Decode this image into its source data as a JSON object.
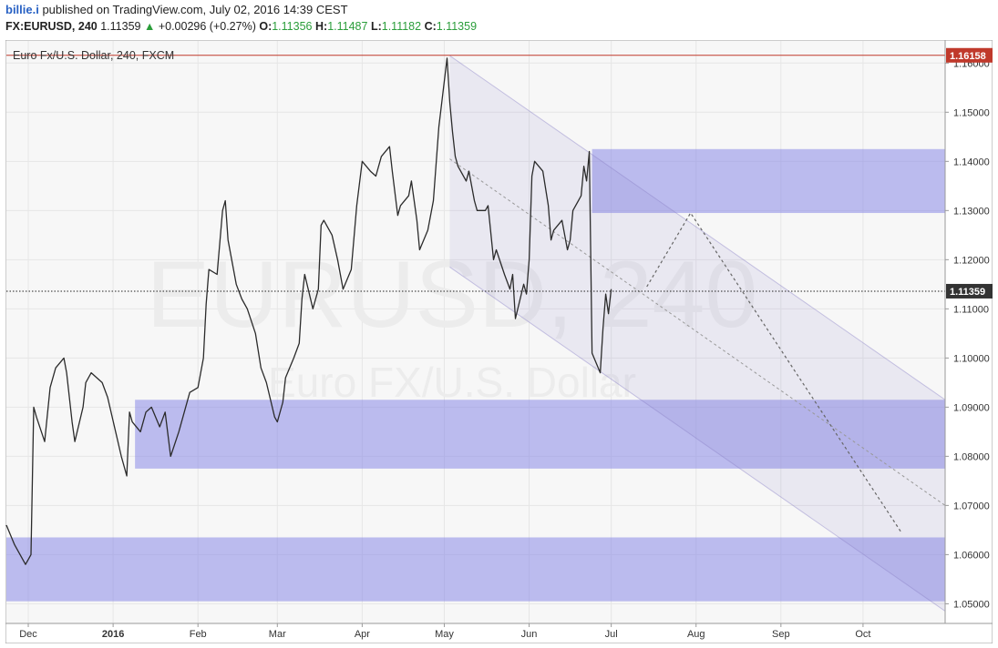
{
  "header": {
    "author": "billie.i",
    "published_text": " published on TradingView.com, July 02, 2016 14:39 CEST",
    "symbol": "FX:EURUSD, 240",
    "last": "1.11359",
    "change_arrow": "▲",
    "change": "+0.00296 (+0.27%)",
    "o_label": "O:",
    "o_value": "1.11356",
    "h_label": "H:",
    "h_value": "1.11487",
    "l_label": "L:",
    "l_value": "1.11182",
    "c_label": "C:",
    "c_value": "1.11359"
  },
  "chart_data": {
    "type": "line",
    "title": "Euro Fx/U.S. Dollar, 240, FXCM",
    "watermark_symbol": "EURUSD, 240",
    "watermark_name": "Euro FX/U.S. Dollar",
    "ylim": [
      1.046,
      1.1645
    ],
    "xlim": [
      "2015-11-23",
      "2016-10-31"
    ],
    "y_ticks": [
      "1.16000",
      "1.15000",
      "1.14000",
      "1.13000",
      "1.12000",
      "1.11000",
      "1.10000",
      "1.09000",
      "1.08000",
      "1.07000",
      "1.06000",
      "1.05000"
    ],
    "x_ticks": [
      {
        "label": "Dec",
        "date": "2015-12-01",
        "bold": false
      },
      {
        "label": "2016",
        "date": "2016-01-01",
        "bold": true
      },
      {
        "label": "Feb",
        "date": "2016-02-01",
        "bold": false
      },
      {
        "label": "Mar",
        "date": "2016-03-01",
        "bold": false
      },
      {
        "label": "Apr",
        "date": "2016-04-01",
        "bold": false
      },
      {
        "label": "May",
        "date": "2016-05-01",
        "bold": false
      },
      {
        "label": "Jun",
        "date": "2016-06-01",
        "bold": false
      },
      {
        "label": "Jul",
        "date": "2016-07-01",
        "bold": false
      },
      {
        "label": "Aug",
        "date": "2016-08-01",
        "bold": false
      },
      {
        "label": "Sep",
        "date": "2016-09-01",
        "bold": false
      },
      {
        "label": "Oct",
        "date": "2016-10-01",
        "bold": false
      }
    ],
    "price_series": {
      "x": [
        "2015-11-23",
        "2015-11-26",
        "2015-11-30",
        "2015-12-02",
        "2015-12-03",
        "2015-12-04",
        "2015-12-07",
        "2015-12-09",
        "2015-12-11",
        "2015-12-14",
        "2015-12-15",
        "2015-12-17",
        "2015-12-18",
        "2015-12-21",
        "2015-12-22",
        "2015-12-24",
        "2015-12-28",
        "2015-12-30",
        "2016-01-04",
        "2016-01-06",
        "2016-01-07",
        "2016-01-08",
        "2016-01-11",
        "2016-01-13",
        "2016-01-15",
        "2016-01-18",
        "2016-01-20",
        "2016-01-22",
        "2016-01-25",
        "2016-01-27",
        "2016-01-29",
        "2016-02-01",
        "2016-02-03",
        "2016-02-04",
        "2016-02-05",
        "2016-02-08",
        "2016-02-10",
        "2016-02-11",
        "2016-02-12",
        "2016-02-15",
        "2016-02-17",
        "2016-02-19",
        "2016-02-22",
        "2016-02-24",
        "2016-02-26",
        "2016-02-29",
        "2016-03-01",
        "2016-03-03",
        "2016-03-04",
        "2016-03-07",
        "2016-03-09",
        "2016-03-10",
        "2016-03-11",
        "2016-03-14",
        "2016-03-16",
        "2016-03-17",
        "2016-03-18",
        "2016-03-21",
        "2016-03-23",
        "2016-03-25",
        "2016-03-28",
        "2016-03-30",
        "2016-04-01",
        "2016-04-04",
        "2016-04-06",
        "2016-04-08",
        "2016-04-11",
        "2016-04-12",
        "2016-04-14",
        "2016-04-15",
        "2016-04-18",
        "2016-04-19",
        "2016-04-21",
        "2016-04-22",
        "2016-04-25",
        "2016-04-27",
        "2016-04-29",
        "2016-05-02",
        "2016-05-03",
        "2016-05-04",
        "2016-05-05",
        "2016-05-06",
        "2016-05-09",
        "2016-05-10",
        "2016-05-12",
        "2016-05-13",
        "2016-05-16",
        "2016-05-17",
        "2016-05-19",
        "2016-05-20",
        "2016-05-23",
        "2016-05-25",
        "2016-05-26",
        "2016-05-27",
        "2016-05-30",
        "2016-05-31",
        "2016-06-01",
        "2016-06-02",
        "2016-06-03",
        "2016-06-06",
        "2016-06-08",
        "2016-06-09",
        "2016-06-10",
        "2016-06-13",
        "2016-06-15",
        "2016-06-16",
        "2016-06-17",
        "2016-06-20",
        "2016-06-21",
        "2016-06-22",
        "2016-06-23",
        "2016-06-24",
        "2016-06-27",
        "2016-06-28",
        "2016-06-29",
        "2016-06-30",
        "2016-07-01"
      ],
      "y": [
        1.066,
        1.062,
        1.058,
        1.06,
        1.09,
        1.088,
        1.083,
        1.094,
        1.098,
        1.1,
        1.097,
        1.087,
        1.083,
        1.09,
        1.095,
        1.097,
        1.095,
        1.092,
        1.08,
        1.076,
        1.089,
        1.087,
        1.085,
        1.089,
        1.09,
        1.086,
        1.089,
        1.08,
        1.085,
        1.089,
        1.093,
        1.094,
        1.1,
        1.111,
        1.118,
        1.117,
        1.13,
        1.132,
        1.124,
        1.115,
        1.112,
        1.11,
        1.105,
        1.098,
        1.095,
        1.088,
        1.087,
        1.091,
        1.096,
        1.1,
        1.103,
        1.112,
        1.117,
        1.11,
        1.114,
        1.127,
        1.128,
        1.125,
        1.12,
        1.114,
        1.118,
        1.131,
        1.14,
        1.138,
        1.137,
        1.141,
        1.143,
        1.138,
        1.129,
        1.131,
        1.133,
        1.136,
        1.128,
        1.122,
        1.126,
        1.132,
        1.147,
        1.161,
        1.152,
        1.146,
        1.141,
        1.139,
        1.136,
        1.138,
        1.132,
        1.13,
        1.13,
        1.131,
        1.12,
        1.122,
        1.117,
        1.114,
        1.117,
        1.108,
        1.115,
        1.113,
        1.12,
        1.137,
        1.14,
        1.138,
        1.131,
        1.124,
        1.126,
        1.128,
        1.122,
        1.124,
        1.13,
        1.133,
        1.139,
        1.136,
        1.142,
        1.101,
        1.097,
        1.106,
        1.113,
        1.109,
        1.114
      ]
    },
    "resistance_line": {
      "y": 1.16158,
      "label": "1.16158",
      "color": "#c0392b"
    },
    "current_price": {
      "y": 1.11359,
      "label": "1.11359"
    },
    "zones": [
      {
        "x0": "2016-06-24",
        "x1": "2016-10-31",
        "y0": 1.1295,
        "y1": 1.1425,
        "color": "#8080e6"
      },
      {
        "x0": "2016-01-09",
        "x1": "2016-10-31",
        "y0": 1.0775,
        "y1": 1.0915,
        "color": "#8080e6"
      },
      {
        "x0": "2015-11-23",
        "x1": "2016-10-31",
        "y0": 1.0505,
        "y1": 1.0635,
        "color": "#8080e6"
      }
    ],
    "channel": {
      "start_x": "2016-05-03",
      "end_x": "2016-10-31",
      "upper": [
        1.1615,
        1.0915
      ],
      "mid": [
        1.1405,
        1.07
      ],
      "lower": [
        1.1185,
        1.0485
      ],
      "color": "#8c82c8"
    },
    "projection": {
      "x": [
        "2016-07-14",
        "2016-07-30",
        "2016-10-15"
      ],
      "y": [
        1.1145,
        1.1295,
        1.0645
      ]
    }
  }
}
